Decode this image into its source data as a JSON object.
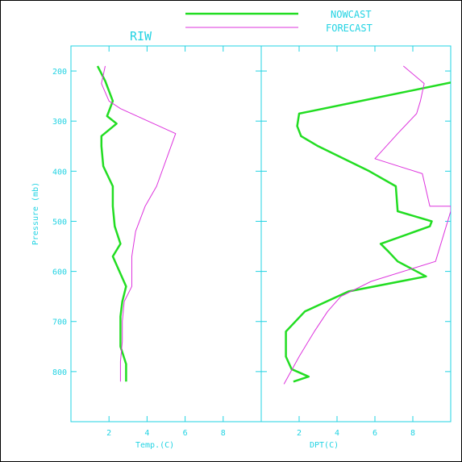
{
  "colors": {
    "nowcast": "#22dd22",
    "forecast": "#dd33dd",
    "axis": "#22d3e3",
    "frame": "#000000"
  },
  "chart_data": {
    "type": "line",
    "title": "RIW",
    "legend": {
      "placement": "top",
      "entries": [
        "NOWCAST",
        "FORECAST"
      ]
    },
    "ylabel": "Pressure (mb)",
    "ylim": [
      900,
      150
    ],
    "yticks": [
      200,
      300,
      400,
      500,
      600,
      700,
      800
    ],
    "grid": false,
    "panels": [
      {
        "xlabel": "Temp.(C)",
        "xlim": [
          0,
          10
        ],
        "xticks": [
          2,
          4,
          6,
          8
        ],
        "series": [
          {
            "name": "NOWCAST",
            "x": [
              1.4,
              1.8,
              2.2,
              1.9,
              2.4,
              1.6,
              1.6,
              1.7,
              2.2,
              2.2,
              2.3,
              2.6,
              2.2,
              2.9,
              2.7,
              2.6,
              2.6,
              2.9,
              2.9
            ],
            "y": [
              190,
              220,
              260,
              290,
              305,
              330,
              350,
              390,
              430,
              470,
              510,
              545,
              570,
              630,
              660,
              690,
              750,
              785,
              820
            ]
          },
          {
            "name": "FORECAST",
            "x": [
              1.8,
              1.6,
              2.0,
              2.6,
              5.5,
              4.5,
              3.9,
              3.4,
              3.2,
              3.2,
              2.8,
              2.7,
              2.7,
              2.6,
              2.6
            ],
            "y": [
              190,
              225,
              260,
              275,
              325,
              430,
              470,
              520,
              570,
              630,
              660,
              700,
              740,
              780,
              820
            ]
          }
        ]
      },
      {
        "xlabel": "DPT(C)",
        "xlim": [
          0,
          10
        ],
        "xticks": [
          2,
          4,
          6,
          8
        ],
        "series": [
          {
            "name": "NOWCAST",
            "x": [
              10.0,
              2.0,
              1.9,
              2.1,
              3.0,
              5.7,
              7.1,
              7.2,
              9.0,
              8.9,
              6.3,
              6.7,
              7.2,
              8.7,
              4.6,
              2.3,
              1.3,
              1.3,
              1.6,
              2.5,
              1.7
            ],
            "y": [
              223,
              285,
              310,
              330,
              350,
              400,
              430,
              480,
              500,
              510,
              545,
              560,
              580,
              610,
              640,
              680,
              720,
              770,
              795,
              810,
              820
            ]
          },
          {
            "name": "FORECAST",
            "x": [
              7.5,
              8.6,
              8.4,
              8.2,
              7.2,
              6.0,
              8.5,
              8.9,
              10.0,
              10.0,
              9.2,
              5.8,
              4.2,
              3.5,
              2.8,
              2.0,
              1.2
            ],
            "y": [
              190,
              225,
              260,
              285,
              325,
              375,
              405,
              470,
              470,
              480,
              580,
              620,
              650,
              680,
              720,
              770,
              825
            ]
          }
        ]
      }
    ]
  }
}
